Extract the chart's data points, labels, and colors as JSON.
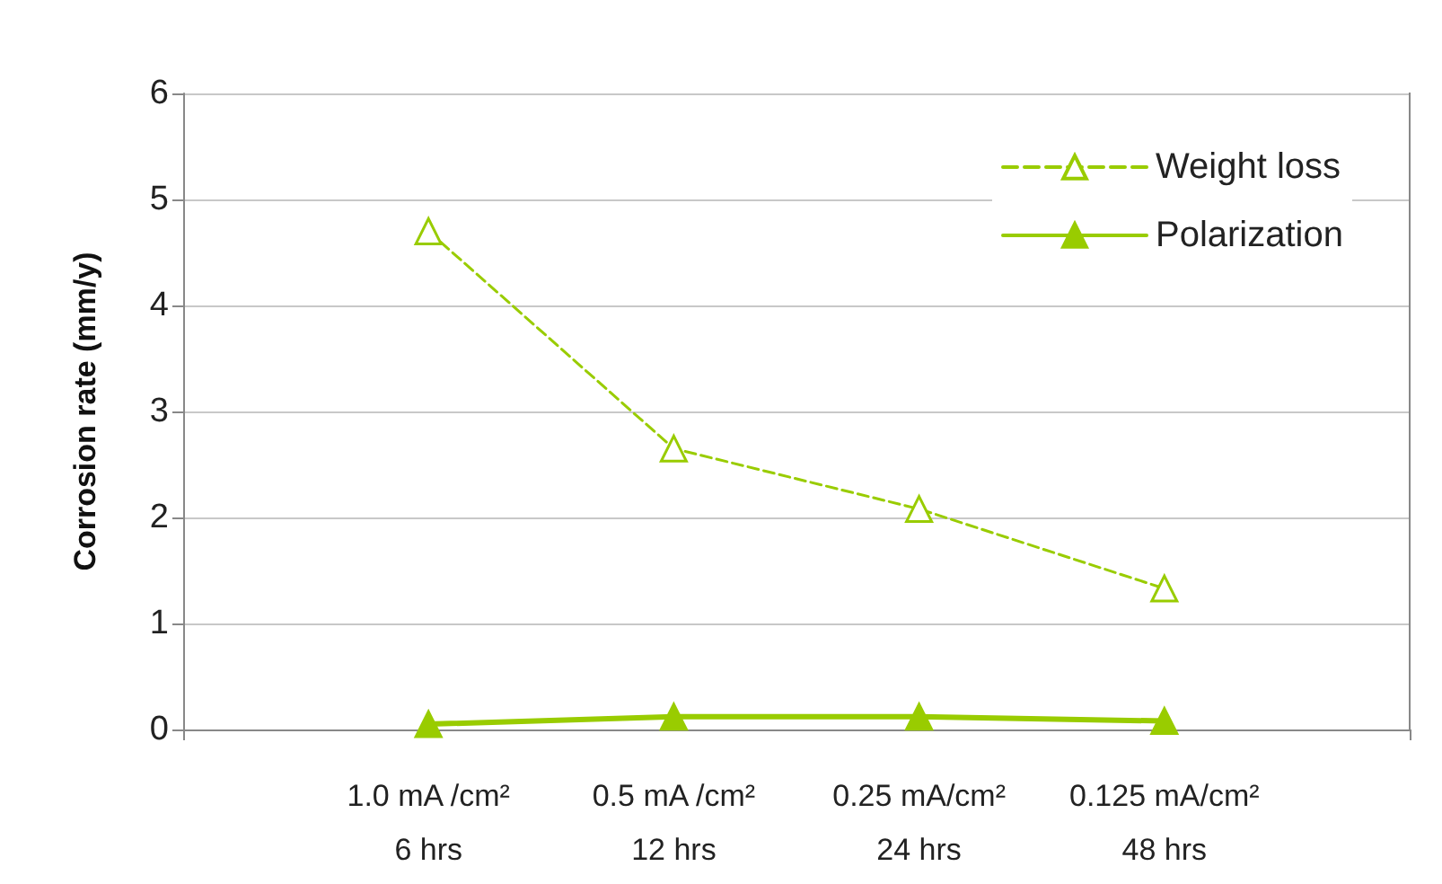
{
  "chart_data": {
    "type": "line",
    "ylabel": "Corrosion rate (mm/y)",
    "categories": [
      null,
      "1.0 mA /cm²\n6 hrs",
      "0.5 mA /cm²\n12 hrs",
      "0.25 mA/cm²\n24 hrs",
      "0.125 mA/cm²\n48 hrs",
      null
    ],
    "series": [
      {
        "name": "Weight loss",
        "color": "#99cc00",
        "values": [
          null,
          4.7,
          2.65,
          2.08,
          1.33,
          null
        ],
        "marker": "triangle",
        "line_style": "dashed"
      },
      {
        "name": "Polarization",
        "color": "#99cc00",
        "values": [
          null,
          0.05,
          0.12,
          0.12,
          0.08,
          null
        ],
        "marker": "triangle",
        "line_style": "solid"
      }
    ],
    "ylim": [
      0,
      6
    ],
    "yticks": [
      0,
      1,
      2,
      3,
      4,
      5,
      6
    ],
    "grid": "y",
    "legend": "top right"
  }
}
